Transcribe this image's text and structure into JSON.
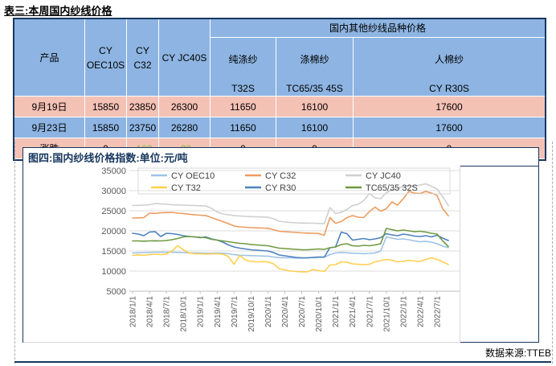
{
  "page": {
    "title": "表三:本周国内纱线价格",
    "source_label": "数据来源:TTEB"
  },
  "table": {
    "product_header": "产品",
    "main_columns": [
      "CY\nOEC10S",
      "CY\nC32",
      "CY JC40S"
    ],
    "group_header": "国内其他纱线品种价格",
    "group_columns": [
      [
        "纯涤纱",
        "T32S"
      ],
      [
        "涤棉纱",
        "TC65/35 45S"
      ],
      [
        "人棉纱",
        "CY R30S"
      ]
    ],
    "rows": [
      {
        "label": "9月19日",
        "values": [
          "15850",
          "23850",
          "26300",
          "11650",
          "16100",
          "17600"
        ],
        "theme": "pink"
      },
      {
        "label": "9月23日",
        "values": [
          "15850",
          "23750",
          "26280",
          "11650",
          "16100",
          "17600"
        ],
        "theme": "blue"
      },
      {
        "label": "涨跌",
        "values": [
          "0",
          "-100",
          "-20",
          "0",
          "0",
          "0"
        ],
        "theme": "pink"
      }
    ],
    "colors": {
      "header_blue": "#8DB4E2",
      "row_pink": "#F4C1B5",
      "row_blue": "#8DB4E2",
      "border_navy": "#17375E",
      "negative_green": "#8CB83F"
    }
  },
  "figure": {
    "title": "图四:国内纱线价格指数:单位:元/吨"
  },
  "chart_data": {
    "type": "line",
    "title": "图四:国内纱线价格指数",
    "unit": "元/吨",
    "ylim": [
      5000,
      35000
    ],
    "yticks": [
      35000,
      30000,
      25000,
      20000,
      15000,
      10000,
      5000
    ],
    "grid": true,
    "legend_position": "top-inside",
    "x_frequency": "monthly",
    "x_start": "2018/1/1",
    "x_end": "2022/9/1",
    "xtick_labels": [
      "2018/1/1",
      "2018/4/1",
      "2018/7/1",
      "2018/10/1",
      "2019/1/1",
      "2019/4/1",
      "2019/7/1",
      "2019/10/1",
      "2020/1/1",
      "2020/4/1",
      "2020/7/1",
      "2020/10/1",
      "2021/1/1",
      "2021/4/1",
      "2021/7/1",
      "2021/10/1",
      "2022/1/1",
      "2022/4/1",
      "2022/7/1"
    ],
    "xtick_month_index": [
      0,
      3,
      6,
      9,
      12,
      15,
      18,
      21,
      24,
      27,
      30,
      33,
      36,
      39,
      42,
      45,
      48,
      51,
      54
    ],
    "axis_color": "#BFBFBF",
    "grid_color": "#DCDCDC",
    "label_color": "#595959",
    "series": [
      {
        "name": "CY OEC10",
        "color": "#9CC3E6",
        "values": [
          14500,
          14550,
          14600,
          14650,
          14700,
          14700,
          14700,
          14700,
          14650,
          14600,
          14550,
          14500,
          14500,
          14450,
          14450,
          14500,
          14450,
          14300,
          14100,
          13950,
          13900,
          13850,
          13800,
          13750,
          13700,
          13500,
          13350,
          13300,
          13300,
          13250,
          13250,
          13300,
          13350,
          13400,
          13450,
          14100,
          14500,
          14650,
          14550,
          14450,
          14400,
          14350,
          14400,
          14500,
          15000,
          18500,
          18200,
          17900,
          18000,
          17800,
          17500,
          17300,
          17400,
          17200,
          16800,
          16200,
          15850
        ]
      },
      {
        "name": "CY C32",
        "color": "#ED9C5F",
        "values": [
          23200,
          23250,
          23300,
          24400,
          24350,
          24500,
          24550,
          24600,
          24400,
          24300,
          24150,
          24000,
          23900,
          23800,
          23300,
          22800,
          22300,
          21800,
          21200,
          21000,
          20900,
          20800,
          20750,
          20700,
          20650,
          20300,
          19900,
          19800,
          19700,
          19600,
          19500,
          19450,
          19400,
          19350,
          18900,
          23300,
          21900,
          22300,
          23300,
          23800,
          23400,
          23300,
          24800,
          25900,
          24900,
          25500,
          27200,
          26400,
          28000,
          29800,
          29400,
          29300,
          29800,
          29400,
          28800,
          25500,
          23750
        ]
      },
      {
        "name": "CY JC40",
        "color": "#D0CECE",
        "values": [
          26300,
          26350,
          26400,
          26500,
          26800,
          26700,
          26600,
          26500,
          26450,
          26400,
          26350,
          26300,
          26250,
          26200,
          25600,
          24700,
          24200,
          24000,
          23800,
          23700,
          23600,
          23550,
          23500,
          23450,
          23400,
          23000,
          22400,
          22200,
          22100,
          22000,
          21950,
          21900,
          21900,
          21850,
          21800,
          25800,
          24300,
          24600,
          25300,
          26300,
          26600,
          27500,
          29300,
          28200,
          28000,
          29500,
          30200,
          30500,
          31000,
          31200,
          31100,
          31400,
          31700,
          31100,
          30400,
          28500,
          26280
        ]
      },
      {
        "name": "CY T32",
        "color": "#FFCF4D",
        "values": [
          13900,
          14050,
          13950,
          14100,
          14200,
          14100,
          14250,
          15000,
          16350,
          15300,
          14500,
          14300,
          14300,
          14250,
          14300,
          14350,
          14200,
          13600,
          11700,
          13900,
          12800,
          12400,
          12300,
          12350,
          12300,
          11800,
          10600,
          10300,
          10000,
          9900,
          9800,
          9800,
          10400,
          10100,
          9900,
          11500,
          11600,
          12300,
          12200,
          11800,
          11700,
          11600,
          11700,
          12300,
          12600,
          12900,
          12700,
          12300,
          12400,
          12700,
          12500,
          12400,
          12900,
          13300,
          12900,
          12300,
          11650
        ]
      },
      {
        "name": "CY R30",
        "color": "#4E81BD",
        "values": [
          19400,
          19200,
          18800,
          19700,
          19800,
          18600,
          19400,
          19300,
          19100,
          18800,
          18600,
          18500,
          18300,
          18500,
          18000,
          17700,
          17200,
          16500,
          16000,
          15700,
          15500,
          15300,
          15200,
          15100,
          15000,
          14600,
          14000,
          13800,
          13600,
          13400,
          13300,
          13300,
          13400,
          13500,
          13500,
          15800,
          16000,
          19700,
          19300,
          17700,
          17900,
          18100,
          17800,
          18000,
          18300,
          19300,
          19000,
          18800,
          19200,
          19000,
          18700,
          18600,
          18800,
          18500,
          18900,
          18200,
          17600
        ]
      },
      {
        "name": "TC65/35 32S",
        "color": "#6F9A41",
        "values": [
          17500,
          17500,
          17450,
          17500,
          17550,
          17500,
          17600,
          17800,
          18100,
          18500,
          18600,
          18500,
          18400,
          18300,
          17900,
          17700,
          17500,
          17300,
          17100,
          16900,
          16800,
          16600,
          16500,
          16400,
          16300,
          16000,
          15700,
          15600,
          15500,
          15400,
          15300,
          15300,
          15400,
          15500,
          15400,
          15800,
          16000,
          16600,
          16800,
          16300,
          16200,
          16400,
          16300,
          16500,
          16800,
          20600,
          20300,
          20000,
          20200,
          20000,
          19800,
          19900,
          19700,
          19400,
          19200,
          17500,
          16100
        ]
      }
    ]
  }
}
